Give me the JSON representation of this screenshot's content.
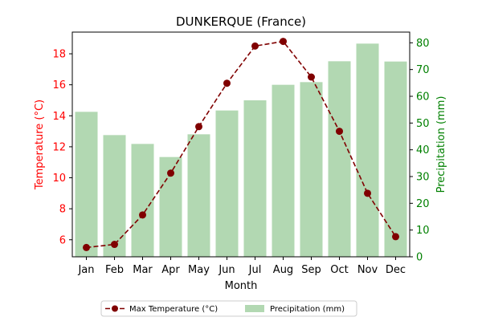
{
  "chart_data": {
    "type": "bar+line",
    "title": "DUNKERQUE (France)",
    "xlabel": "Month",
    "categories": [
      "Jan",
      "Feb",
      "Mar",
      "Apr",
      "May",
      "Jun",
      "Jul",
      "Aug",
      "Sep",
      "Oct",
      "Nov",
      "Dec"
    ],
    "y_left": {
      "label": "Temperature (°C)",
      "ylim": [
        4.9,
        19.4
      ],
      "ticks": [
        6,
        8,
        10,
        12,
        14,
        16,
        18
      ],
      "color": "#ff0000"
    },
    "y_right": {
      "label": "Precipitation (mm)",
      "ylim": [
        0,
        84
      ],
      "ticks": [
        0,
        10,
        20,
        30,
        40,
        50,
        60,
        70,
        80
      ],
      "color": "#008000"
    },
    "series": [
      {
        "name": "Max Temperature (°C)",
        "type": "line",
        "axis": "left",
        "color": "#800000",
        "values": [
          5.5,
          5.7,
          7.6,
          10.3,
          13.3,
          16.1,
          18.5,
          18.8,
          16.5,
          13.0,
          9.0,
          6.2
        ]
      },
      {
        "name": "Precipitation (mm)",
        "type": "bar",
        "axis": "right",
        "color": "#b2d8b2",
        "values": [
          54.2,
          45.5,
          42.2,
          37.3,
          45.8,
          54.7,
          58.5,
          64.3,
          65.3,
          73.1,
          79.7,
          73.0
        ]
      }
    ],
    "legend_position": "bottom-center",
    "grid": false
  }
}
